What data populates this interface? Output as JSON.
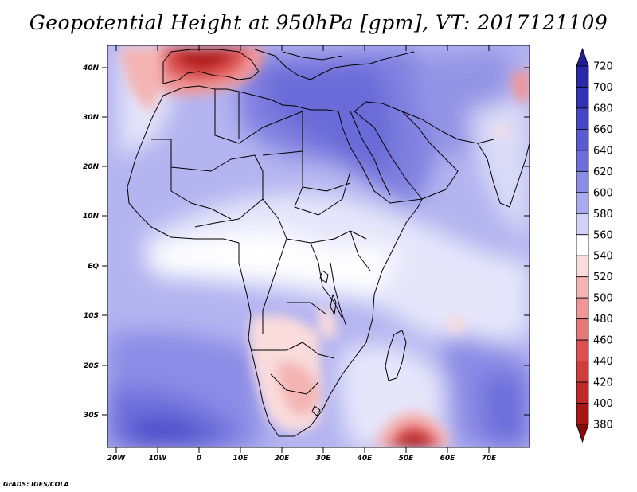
{
  "title": "Geopotential Height at 950hPa [gpm], VT: 2017121109",
  "credit": "GrADS: IGES/COLA",
  "map": {
    "lat_labels": [
      "40N",
      "30N",
      "20N",
      "10N",
      "EQ",
      "10S",
      "20S",
      "30S"
    ],
    "lon_labels": [
      "20W",
      "10W",
      "0",
      "10E",
      "20E",
      "30E",
      "40E",
      "50E",
      "60E",
      "70E"
    ]
  },
  "colorbar": {
    "levels": [
      "720",
      "700",
      "680",
      "660",
      "640",
      "620",
      "600",
      "580",
      "560",
      "540",
      "520",
      "500",
      "480",
      "460",
      "440",
      "420",
      "400",
      "380"
    ],
    "colors": [
      "#1e1e96",
      "#2828aa",
      "#3232b9",
      "#4646c8",
      "#5a5ad2",
      "#6e6edc",
      "#8c8ce6",
      "#aaaaf0",
      "#d2d2f8",
      "#ffffff",
      "#fadcdc",
      "#f5b4b4",
      "#f09696",
      "#e67878",
      "#dc5050",
      "#d23c3c",
      "#c32828",
      "#aa1414",
      "#8c0a0a"
    ]
  }
}
